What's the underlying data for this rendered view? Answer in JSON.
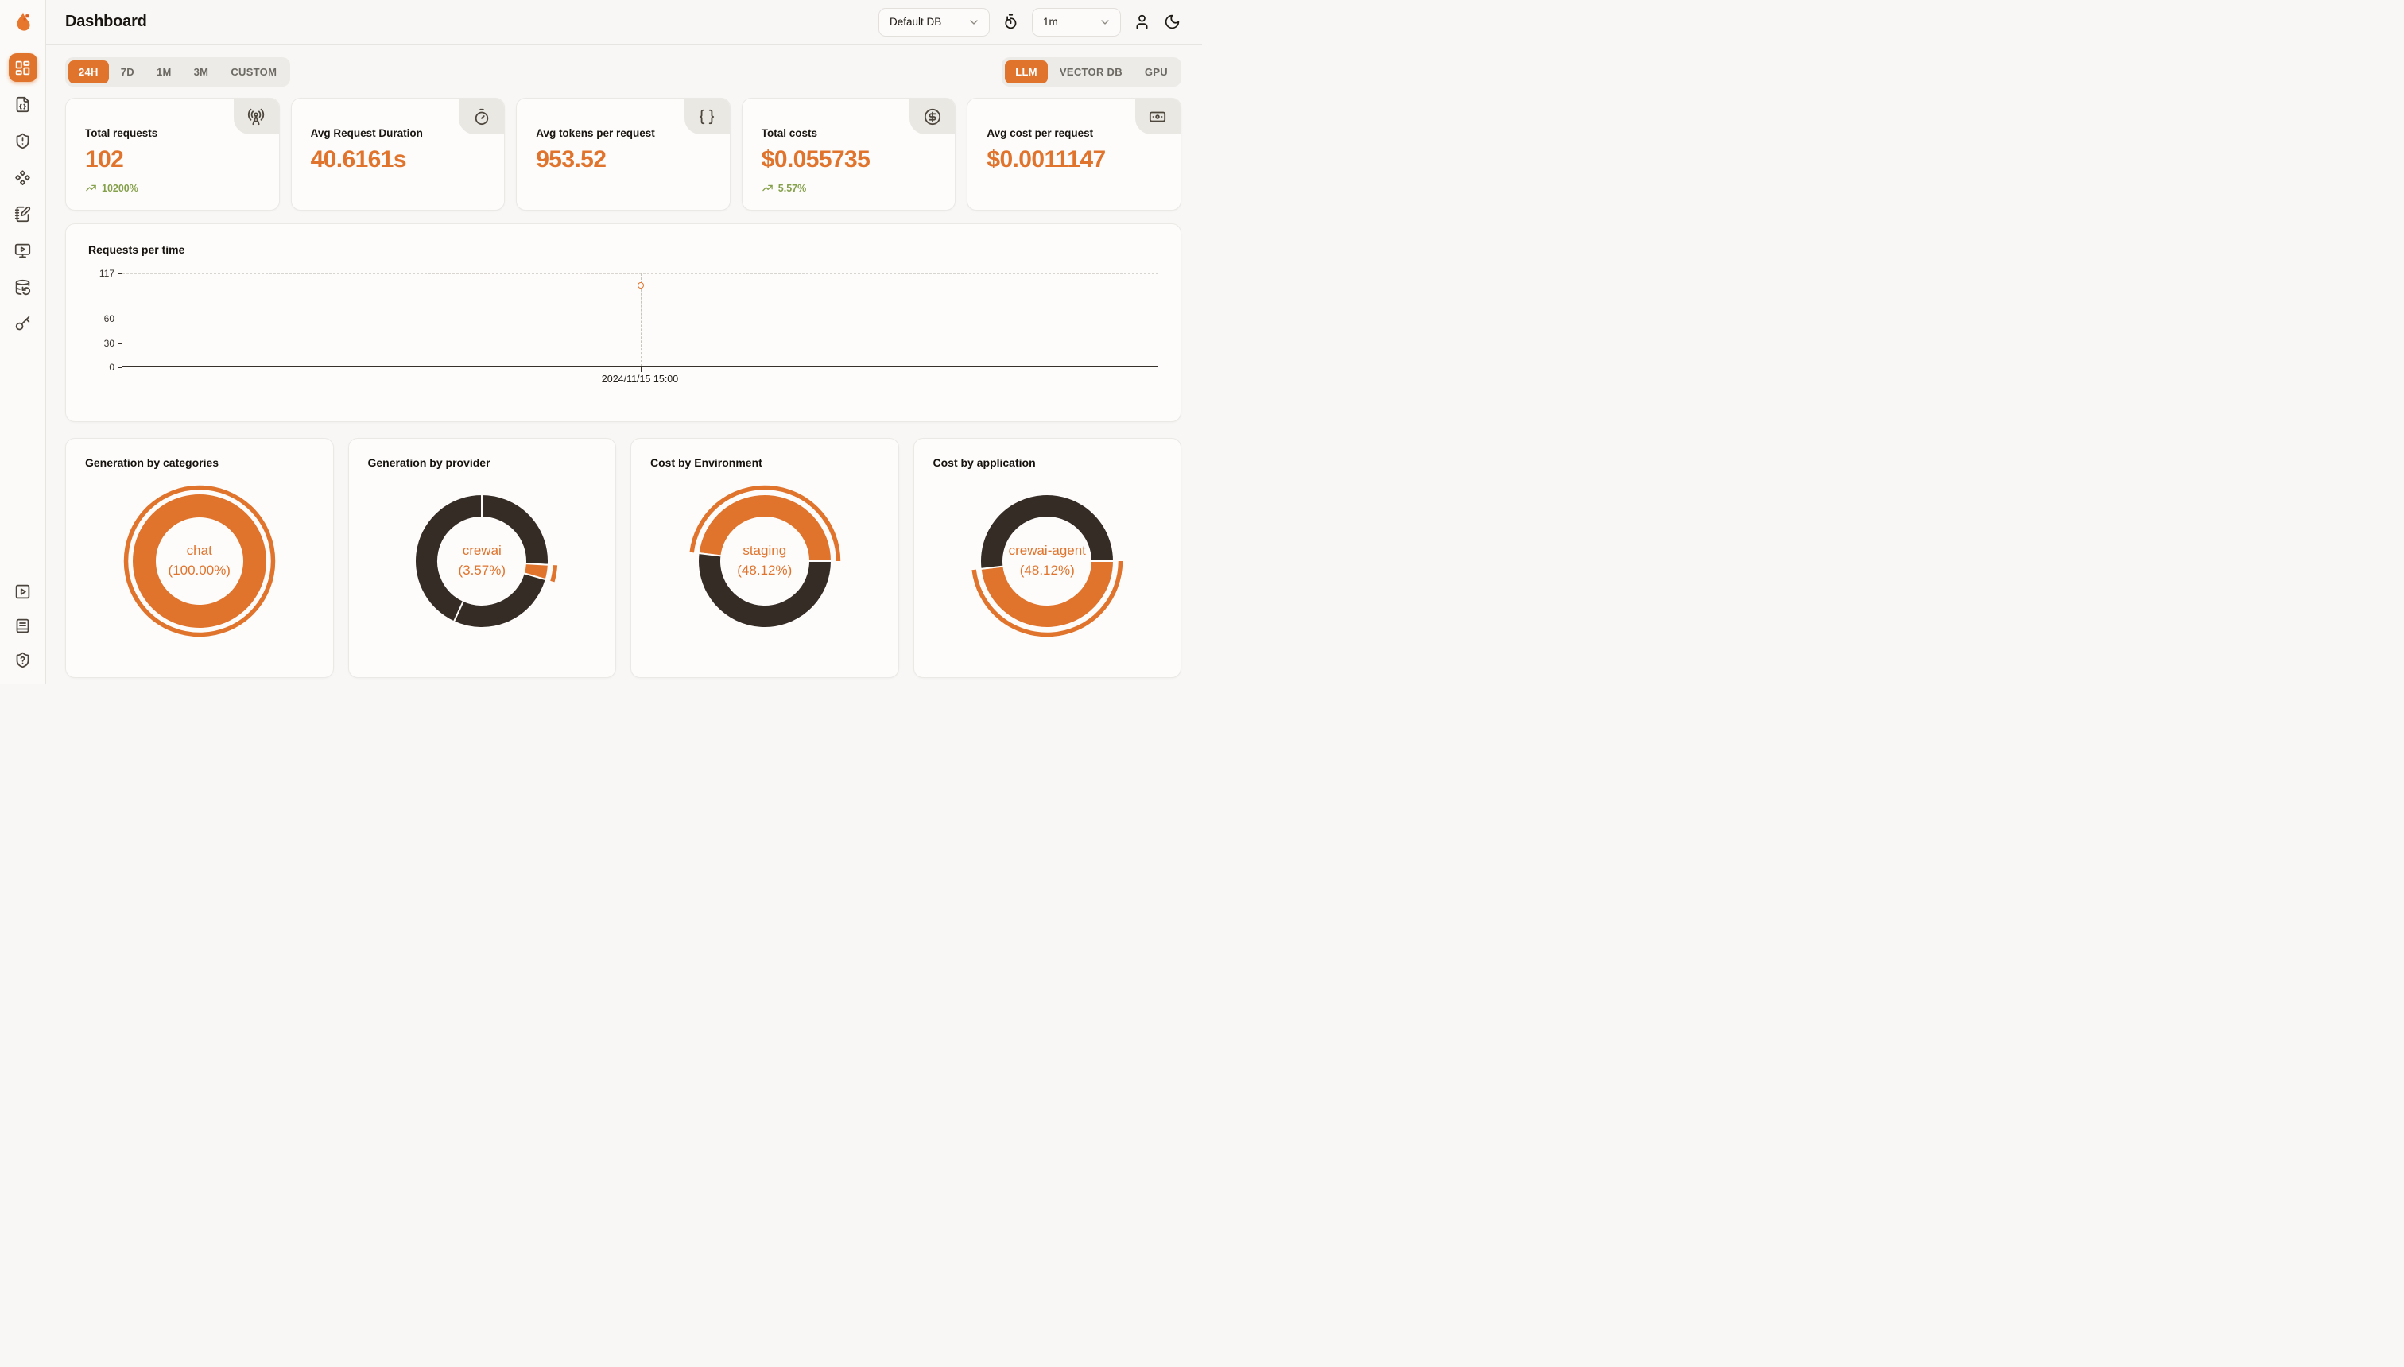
{
  "colors": {
    "accent": "#e0742d",
    "dark_slice": "#352c25",
    "positive": "#85a04a",
    "axis": "#36312b"
  },
  "header": {
    "title": "Dashboard",
    "db_select": {
      "value": "Default DB"
    },
    "interval_select": {
      "value": "1m"
    }
  },
  "filters": {
    "time_ranges": [
      "24H",
      "7D",
      "1M",
      "3M",
      "CUSTOM"
    ],
    "active_time_range": "24H",
    "modes": [
      "LLM",
      "VECTOR DB",
      "GPU"
    ],
    "active_mode": "LLM"
  },
  "stats": [
    {
      "label": "Total requests",
      "value": "102",
      "delta": "10200%",
      "icon": "radio-tower"
    },
    {
      "label": "Avg Request Duration",
      "value": "40.6161s",
      "delta": null,
      "icon": "timer"
    },
    {
      "label": "Avg tokens per request",
      "value": "953.52",
      "delta": null,
      "icon": "braces"
    },
    {
      "label": "Total costs",
      "value": "$0.055735",
      "delta": "5.57%",
      "icon": "circle-dollar-sign"
    },
    {
      "label": "Avg cost per request",
      "value": "$0.0011147",
      "delta": null,
      "icon": "banknote"
    }
  ],
  "chart_data": [
    {
      "type": "line",
      "title": "Requests per time",
      "x_labels": [
        "2024/11/15 15:00"
      ],
      "series": [
        {
          "name": "requests",
          "points": [
            {
              "x": "2024/11/15 15:00",
              "y": 102
            }
          ]
        }
      ],
      "ylim": [
        0,
        117
      ],
      "yticks": [
        0,
        30,
        60,
        117
      ],
      "grid": "dashed-horizontal",
      "point_x_frac": 0.5
    },
    {
      "type": "pie",
      "title": "Generation by categories",
      "center_label": {
        "line1": "chat",
        "line2": "(100.00%)"
      },
      "start_angle": 0,
      "segments": [
        {
          "label": "chat",
          "pct": 100.0,
          "color": "accent",
          "highlighted": true
        }
      ]
    },
    {
      "type": "pie",
      "title": "Generation by provider",
      "center_label": {
        "line1": "crewai",
        "line2": "(3.57%)"
      },
      "start_angle": 0,
      "segments": [
        {
          "label": "",
          "pct": 25.9,
          "color": "dark",
          "highlighted": false
        },
        {
          "label": "crewai",
          "pct": 3.57,
          "color": "accent",
          "highlighted": true
        },
        {
          "label": "",
          "pct": 27.4,
          "color": "dark",
          "highlighted": false
        },
        {
          "label": "",
          "pct": 43.13,
          "color": "dark",
          "highlighted": false
        }
      ]
    },
    {
      "type": "pie",
      "title": "Cost by Environment",
      "center_label": {
        "line1": "staging",
        "line2": "(48.12%)"
      },
      "start_angle": 276.8,
      "segments": [
        {
          "label": "staging",
          "pct": 48.12,
          "color": "accent",
          "highlighted": true
        },
        {
          "label": "",
          "pct": 51.88,
          "color": "dark",
          "highlighted": false
        }
      ]
    },
    {
      "type": "pie",
      "title": "Cost by application",
      "center_label": {
        "line1": "crewai-agent",
        "line2": "(48.12%)"
      },
      "start_angle": 90,
      "segments": [
        {
          "label": "crewai-agent",
          "pct": 48.12,
          "color": "accent",
          "highlighted": true
        },
        {
          "label": "",
          "pct": 51.88,
          "color": "dark",
          "highlighted": false
        }
      ]
    }
  ],
  "sidebar": {
    "items": [
      {
        "name": "dashboard",
        "icon": "layout-dashboard",
        "active": true
      },
      {
        "name": "traces",
        "icon": "file-code",
        "active": false
      },
      {
        "name": "security",
        "icon": "shield-alert",
        "active": false
      },
      {
        "name": "components",
        "icon": "component",
        "active": false
      },
      {
        "name": "evaluations",
        "icon": "notebook-pen",
        "active": false
      },
      {
        "name": "playground",
        "icon": "monitor-play",
        "active": false
      },
      {
        "name": "datasets",
        "icon": "database-backup",
        "active": false
      },
      {
        "name": "api-keys",
        "icon": "key",
        "active": false
      }
    ],
    "bottom_items": [
      {
        "name": "tutorials",
        "icon": "square-play"
      },
      {
        "name": "documentation",
        "icon": "notebook-text"
      },
      {
        "name": "support",
        "icon": "shield-question"
      }
    ]
  }
}
